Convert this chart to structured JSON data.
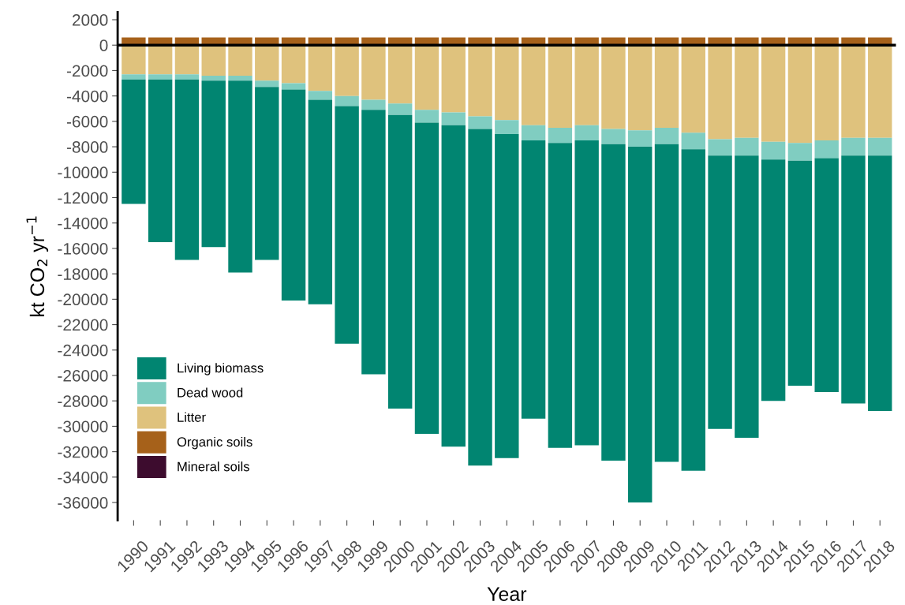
{
  "chart_data": {
    "type": "bar",
    "stacked": true,
    "xlabel": "Year",
    "ylabel": "kt CO$_{2}$ yr$^{−1}$",
    "categories": [
      "1990",
      "1991",
      "1992",
      "1993",
      "1994",
      "1995",
      "1996",
      "1997",
      "1998",
      "1999",
      "2000",
      "2001",
      "2002",
      "2003",
      "2004",
      "2005",
      "2006",
      "2007",
      "2008",
      "2009",
      "2010",
      "2011",
      "2012",
      "2013",
      "2014",
      "2015",
      "2016",
      "2017",
      "2018"
    ],
    "series": [
      {
        "name": "Litter",
        "color": "#dfc27d",
        "values": [
          -2300,
          -2300,
          -2300,
          -2400,
          -2400,
          -2800,
          -3000,
          -3600,
          -4000,
          -4300,
          -4600,
          -5100,
          -5300,
          -5600,
          -5900,
          -6300,
          -6500,
          -6300,
          -6600,
          -6700,
          -6500,
          -6900,
          -7400,
          -7300,
          -7600,
          -7700,
          -7500,
          -7300,
          -7300
        ]
      },
      {
        "name": "Dead wood",
        "color": "#80cdc1",
        "values": [
          -400,
          -400,
          -400,
          -400,
          -400,
          -500,
          -500,
          -700,
          -800,
          -800,
          -900,
          -1000,
          -1000,
          -1000,
          -1100,
          -1200,
          -1200,
          -1200,
          -1200,
          -1300,
          -1300,
          -1300,
          -1300,
          -1400,
          -1400,
          -1400,
          -1400,
          -1400,
          -1400
        ]
      },
      {
        "name": "Living biomass",
        "color": "#018571",
        "values": [
          -9800,
          -12800,
          -14200,
          -13100,
          -15100,
          -13600,
          -16600,
          -16100,
          -18700,
          -20800,
          -23100,
          -24500,
          -25300,
          -26500,
          -25500,
          -21900,
          -24000,
          -24000,
          -24900,
          -28000,
          -25000,
          -25300,
          -21500,
          -22200,
          -19000,
          -17700,
          -18400,
          -19500,
          -20100
        ]
      },
      {
        "name": "Organic soils",
        "color": "#a6611a",
        "values": [
          600,
          600,
          600,
          600,
          600,
          600,
          600,
          600,
          600,
          600,
          600,
          600,
          600,
          600,
          600,
          600,
          600,
          600,
          600,
          600,
          600,
          600,
          600,
          600,
          600,
          600,
          600,
          600,
          600
        ]
      },
      {
        "name": "Mineral soils",
        "color": "#3d0c2e",
        "values": [
          null,
          null,
          null,
          null,
          null,
          null,
          null,
          null,
          null,
          null,
          null,
          null,
          null,
          null,
          null,
          null,
          null,
          null,
          null,
          null,
          null,
          null,
          null,
          null,
          null,
          null,
          null,
          null,
          null
        ]
      }
    ],
    "ylim": [
      -37400,
      2600
    ],
    "yticks": [
      2000,
      0,
      -2000,
      -4000,
      -6000,
      -8000,
      -10000,
      -12000,
      -14000,
      -16000,
      -18000,
      -20000,
      -22000,
      -24000,
      -26000,
      -28000,
      -30000,
      -32000,
      -34000,
      -36000
    ],
    "ref_lines": [
      {
        "axis": "y",
        "value": 0,
        "color": "#000000"
      }
    ],
    "grid": false,
    "legend": "bottom left"
  }
}
